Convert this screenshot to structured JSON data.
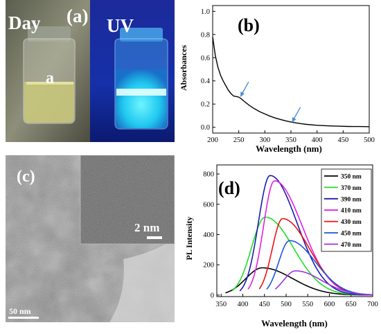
{
  "panel_a": {
    "label": "(a)",
    "day_label": "Day",
    "uv_label": "UV",
    "vial_label": "a"
  },
  "panel_c": {
    "label": "(c)",
    "inset_scale": "2 nm",
    "main_scale": "50 nm"
  },
  "chart_data": [
    {
      "type": "line",
      "panel_label": "(b)",
      "xlabel": "Wavelength (nm)",
      "ylabel": "Absorbances",
      "xlim": [
        200,
        500
      ],
      "ylim": [
        -0.05,
        1.05
      ],
      "xticks": [
        200,
        250,
        300,
        350,
        400,
        450,
        500
      ],
      "yticks": [
        0.0,
        0.2,
        0.4,
        0.6,
        0.8,
        1.0
      ],
      "ytick_labels": [
        "0.0",
        "0.2",
        "0.4",
        "0.6",
        "0.8",
        "1.0"
      ],
      "series": [
        {
          "color": "#000000",
          "x": [
            200,
            205,
            210,
            215,
            220,
            225,
            230,
            235,
            240,
            245,
            250,
            255,
            260,
            270,
            280,
            290,
            300,
            310,
            320,
            330,
            340,
            350,
            360,
            370,
            380,
            400,
            420,
            440,
            460,
            480,
            500
          ],
          "y": [
            0.78,
            0.62,
            0.52,
            0.45,
            0.4,
            0.36,
            0.32,
            0.29,
            0.27,
            0.265,
            0.26,
            0.245,
            0.225,
            0.19,
            0.16,
            0.135,
            0.115,
            0.095,
            0.08,
            0.067,
            0.055,
            0.045,
            0.037,
            0.03,
            0.025,
            0.017,
            0.012,
            0.009,
            0.007,
            0.006,
            0.005
          ]
        }
      ],
      "annotations": [
        {
          "type": "arrow",
          "x": 253,
          "y": 0.26,
          "color": "#4a8fd0"
        },
        {
          "type": "arrow",
          "x": 352,
          "y": 0.04,
          "color": "#4a8fd0"
        }
      ]
    },
    {
      "type": "line",
      "panel_label": "(d)",
      "xlabel": "Wavelength (nm)",
      "ylabel": "PL Intensity",
      "xlim": [
        340,
        700
      ],
      "ylim": [
        -10,
        860
      ],
      "xticks": [
        350,
        400,
        450,
        500,
        550,
        600,
        650,
        700
      ],
      "yticks": [
        0,
        200,
        400,
        600,
        800
      ],
      "legend_position": "top-right",
      "series": [
        {
          "name": "350 nm",
          "color": "#000000",
          "peak_x": 445,
          "peak_y": 180,
          "start_x": 360,
          "sigma_l": 38,
          "sigma_r": 70
        },
        {
          "name": "370 nm",
          "color": "#22dd22",
          "peak_x": 452,
          "peak_y": 515,
          "start_x": 375,
          "sigma_l": 32,
          "sigma_r": 65
        },
        {
          "name": "390 nm",
          "color": "#1a1ab0",
          "peak_x": 463,
          "peak_y": 790,
          "start_x": 393,
          "sigma_l": 27,
          "sigma_r": 62
        },
        {
          "name": "410 nm",
          "color": "#e020e0",
          "peak_x": 473,
          "peak_y": 755,
          "start_x": 412,
          "sigma_l": 25,
          "sigma_r": 64
        },
        {
          "name": "430 nm",
          "color": "#ee1111",
          "peak_x": 492,
          "peak_y": 505,
          "start_x": 438,
          "sigma_l": 24,
          "sigma_r": 62
        },
        {
          "name": "450 nm",
          "color": "#1a55e0",
          "peak_x": 508,
          "peak_y": 360,
          "start_x": 455,
          "sigma_l": 25,
          "sigma_r": 60
        },
        {
          "name": "470 nm",
          "color": "#a030e0",
          "peak_x": 522,
          "peak_y": 160,
          "start_x": 475,
          "sigma_l": 28,
          "sigma_r": 60
        }
      ]
    }
  ]
}
